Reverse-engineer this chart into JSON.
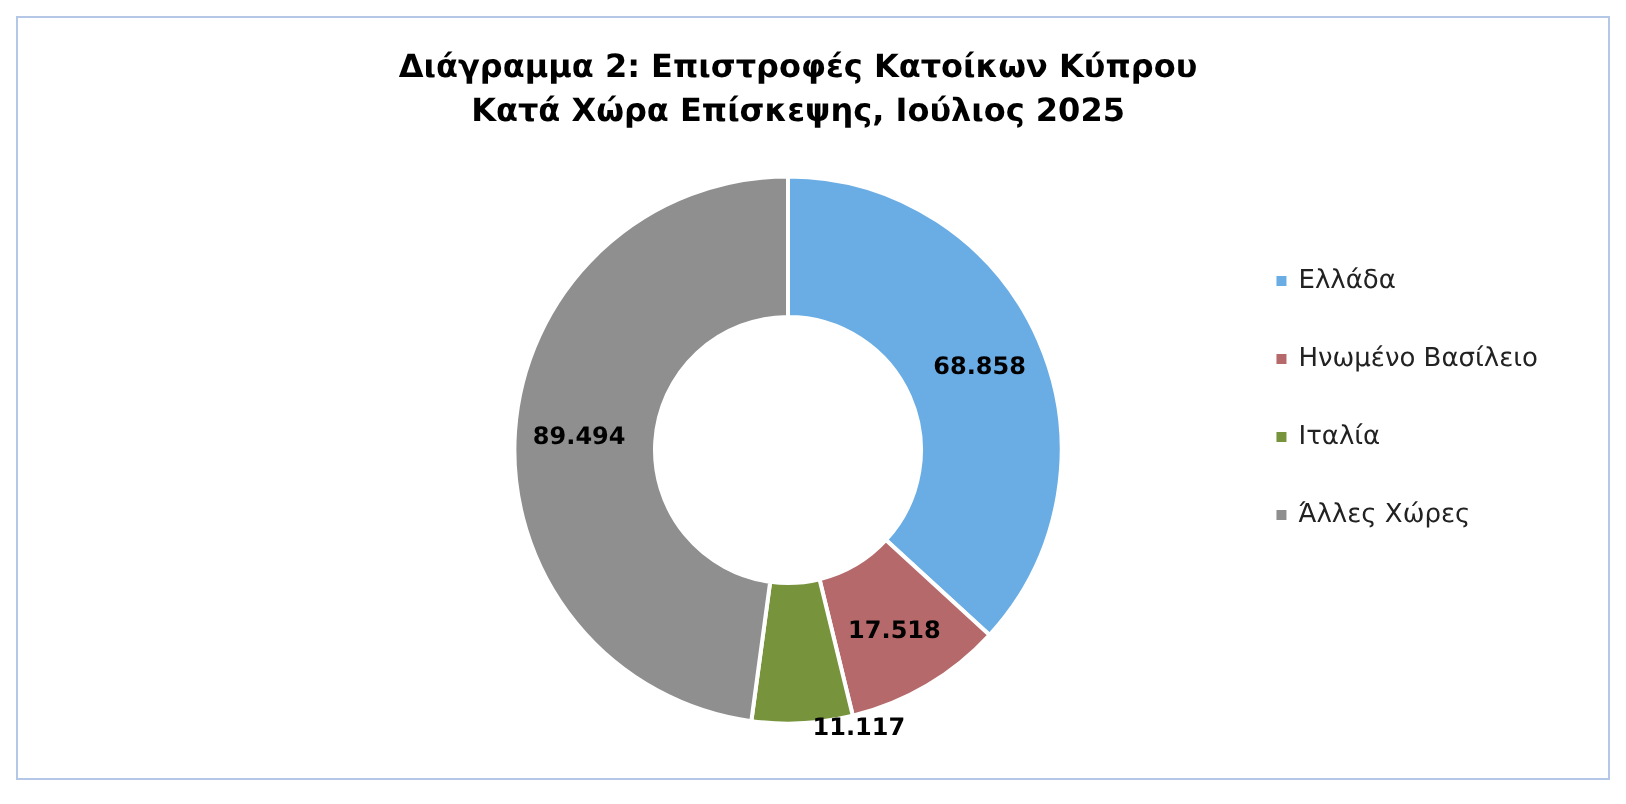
{
  "chart_data": {
    "type": "donut",
    "title": "Διάγραμμα 2: Επιστροφές Κατοίκων Κύπρου\nΚατά Χώρα Επίσκεψης, Ιούλιος 2025",
    "categories": [
      "Ελλάδα",
      "Ηνωμένο Βασίλειο",
      "Ιταλία",
      "Άλλες Χώρες"
    ],
    "values": [
      68858,
      17518,
      11117,
      89494
    ],
    "value_labels": [
      "68.858",
      "17.518",
      "11.117",
      "89.494"
    ],
    "colors": [
      "#6aade4",
      "#b5696a",
      "#77933c",
      "#8f8f8f"
    ],
    "legend": "right"
  }
}
